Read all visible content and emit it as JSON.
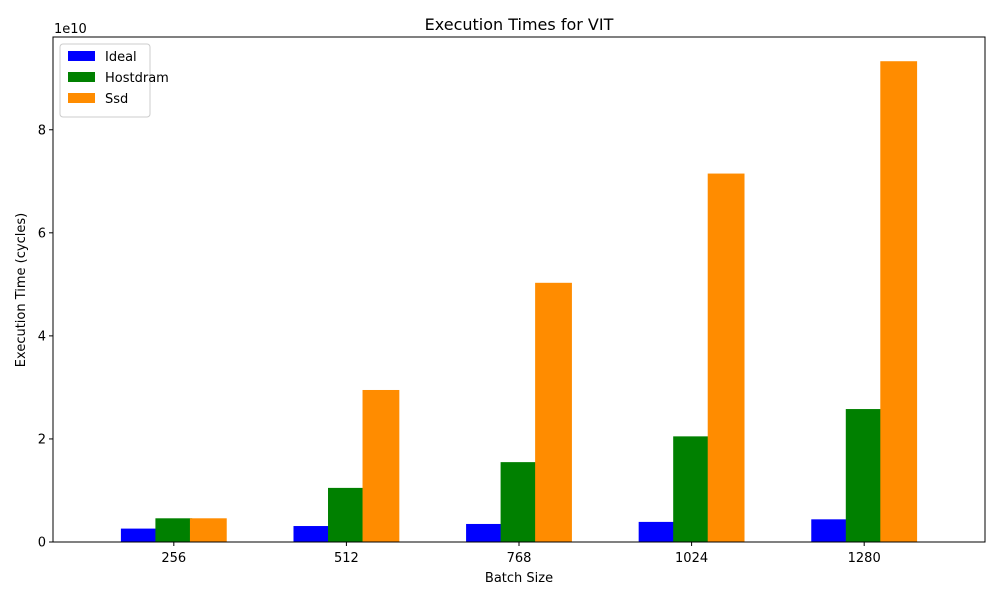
{
  "chart_data": {
    "type": "bar",
    "title": "Execution Times for VIT",
    "xlabel": "Batch Size",
    "ylabel": "Execution Time (cycles)",
    "y_offset_text": "1e10",
    "categories": [
      "256",
      "512",
      "768",
      "1024",
      "1280"
    ],
    "series": [
      {
        "name": "Ideal",
        "color": "#0000ff",
        "values": [
          2600000000.0,
          3100000000.0,
          3500000000.0,
          3900000000.0,
          4400000000.0
        ]
      },
      {
        "name": "Hostdram",
        "color": "#008000",
        "values": [
          4600000000.0,
          10500000000.0,
          15500000000.0,
          20500000000.0,
          25800000000.0
        ]
      },
      {
        "name": "Ssd",
        "color": "#ff8c00",
        "values": [
          4600000000.0,
          29500000000.0,
          50300000000.0,
          71500000000.0,
          93300000000.0
        ]
      }
    ],
    "ylim": [
      0,
      98000000000.0
    ],
    "yticks": [
      0,
      20000000000.0,
      40000000000.0,
      60000000000.0,
      80000000000.0
    ],
    "ytick_labels": [
      "0",
      "2",
      "4",
      "6",
      "8"
    ],
    "legend_position": "upper-left",
    "grid": false
  }
}
